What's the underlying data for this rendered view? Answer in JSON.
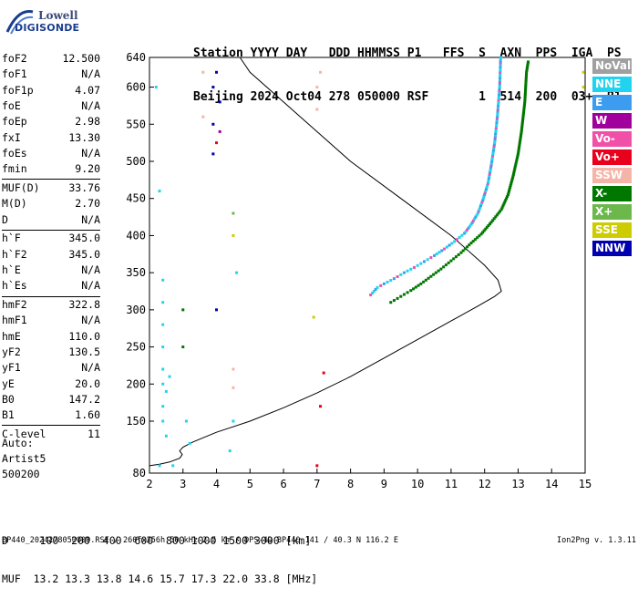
{
  "logo": {
    "line1": "Lowell",
    "line2": "DIGISONDE"
  },
  "header": {
    "line1": "Station YYYY DAY   DDD HHMMSS P1   FFS  S  AXN  PPS  IGA  PS",
    "line2": "Beijing 2024 Oct04 278 050000 RSF       1  514  200  03+  B1"
  },
  "params_group1": [
    {
      "name": "foF2",
      "value": "12.500"
    },
    {
      "name": "foF1",
      "value": "N/A"
    },
    {
      "name": "foF1p",
      "value": "4.07"
    },
    {
      "name": "foE",
      "value": "N/A"
    },
    {
      "name": "foEp",
      "value": "2.98"
    },
    {
      "name": "fxI",
      "value": "13.30"
    },
    {
      "name": "foEs",
      "value": "N/A"
    },
    {
      "name": "fmin",
      "value": "9.20"
    }
  ],
  "params_group2": [
    {
      "name": "MUF(D)",
      "value": "33.76"
    },
    {
      "name": "M(D)",
      "value": "2.70"
    },
    {
      "name": "D",
      "value": "N/A"
    }
  ],
  "params_group3": [
    {
      "name": "h`F",
      "value": "345.0"
    },
    {
      "name": "h`F2",
      "value": "345.0"
    },
    {
      "name": "h`E",
      "value": "N/A"
    },
    {
      "name": "h`Es",
      "value": "N/A"
    }
  ],
  "params_group4": [
    {
      "name": "hmF2",
      "value": "322.8"
    },
    {
      "name": "hmF1",
      "value": "N/A"
    },
    {
      "name": "hmE",
      "value": "110.0"
    },
    {
      "name": "yF2",
      "value": "130.5"
    },
    {
      "name": "yF1",
      "value": "N/A"
    },
    {
      "name": "yE",
      "value": "20.0"
    },
    {
      "name": "B0",
      "value": "147.2"
    },
    {
      "name": "B1",
      "value": "1.60"
    }
  ],
  "params_group5": [
    {
      "name": "C-level",
      "value": "11"
    }
  ],
  "auto": {
    "label": "Auto:",
    "name": "Artist5",
    "code": "500200"
  },
  "muf_table": {
    "line1": "D     100  200  400  600  800 1000 1500 3000 [km]",
    "line2": "MUF  13.2 13.3 13.8 14.6 15.7 17.3 22.0 33.8 [MHz]"
  },
  "footer": "BP440_2024278050000.RSF / 260fx256h 50 kHz 2.5 km / DPS-4D BP440 141 / 40.3 N 116.2 E",
  "version": "Ion2Png v. 1.3.11",
  "legend": [
    {
      "label": "NoVal",
      "color": "#a0a0a0"
    },
    {
      "label": "NNE",
      "color": "#22d3f0"
    },
    {
      "label": "E",
      "color": "#3b9cf0"
    },
    {
      "label": "W",
      "color": "#a2009c"
    },
    {
      "label": "Vo-",
      "color": "#f050a8"
    },
    {
      "label": "Vo+",
      "color": "#e8001c"
    },
    {
      "label": "SSW",
      "color": "#f4b4a8"
    },
    {
      "label": "X-",
      "color": "#007800"
    },
    {
      "label": "X+",
      "color": "#6cb84c"
    },
    {
      "label": "SSE",
      "color": "#cccc00"
    },
    {
      "label": "NNW",
      "color": "#0000b0"
    }
  ],
  "chart_data": {
    "type": "scatter",
    "xlim": [
      2,
      15
    ],
    "ylim": [
      80,
      640
    ],
    "xticks": [
      2,
      3,
      4,
      5,
      6,
      7,
      8,
      9,
      10,
      11,
      12,
      13,
      14,
      15
    ],
    "yticks": [
      80,
      150,
      200,
      250,
      300,
      350,
      400,
      450,
      500,
      550,
      600,
      640
    ],
    "grid": false,
    "ordinary_trace_O": [
      {
        "x": 8.6,
        "y": 320
      },
      {
        "x": 8.7,
        "y": 325
      },
      {
        "x": 8.8,
        "y": 330
      },
      {
        "x": 9.0,
        "y": 335
      },
      {
        "x": 9.3,
        "y": 342
      },
      {
        "x": 9.6,
        "y": 350
      },
      {
        "x": 9.9,
        "y": 357
      },
      {
        "x": 10.2,
        "y": 365
      },
      {
        "x": 10.5,
        "y": 373
      },
      {
        "x": 10.8,
        "y": 382
      },
      {
        "x": 11.1,
        "y": 392
      },
      {
        "x": 11.4,
        "y": 403
      },
      {
        "x": 11.6,
        "y": 415
      },
      {
        "x": 11.8,
        "y": 430
      },
      {
        "x": 11.95,
        "y": 448
      },
      {
        "x": 12.1,
        "y": 470
      },
      {
        "x": 12.2,
        "y": 495
      },
      {
        "x": 12.3,
        "y": 525
      },
      {
        "x": 12.38,
        "y": 560
      },
      {
        "x": 12.45,
        "y": 600
      },
      {
        "x": 12.48,
        "y": 640
      }
    ],
    "extraordinary_trace_X": [
      {
        "x": 9.2,
        "y": 310
      },
      {
        "x": 9.5,
        "y": 318
      },
      {
        "x": 9.8,
        "y": 326
      },
      {
        "x": 10.1,
        "y": 335
      },
      {
        "x": 10.4,
        "y": 345
      },
      {
        "x": 10.7,
        "y": 355
      },
      {
        "x": 11.0,
        "y": 366
      },
      {
        "x": 11.3,
        "y": 377
      },
      {
        "x": 11.6,
        "y": 390
      },
      {
        "x": 11.9,
        "y": 402
      },
      {
        "x": 12.2,
        "y": 418
      },
      {
        "x": 12.5,
        "y": 435
      },
      {
        "x": 12.7,
        "y": 455
      },
      {
        "x": 12.85,
        "y": 480
      },
      {
        "x": 13.0,
        "y": 510
      },
      {
        "x": 13.1,
        "y": 540
      },
      {
        "x": 13.2,
        "y": 580
      },
      {
        "x": 13.25,
        "y": 620
      },
      {
        "x": 13.3,
        "y": 634
      }
    ],
    "profile_curve": [
      {
        "x": 2.0,
        "y": 90
      },
      {
        "x": 2.3,
        "y": 92
      },
      {
        "x": 2.6,
        "y": 95
      },
      {
        "x": 2.9,
        "y": 100
      },
      {
        "x": 2.98,
        "y": 105
      },
      {
        "x": 2.9,
        "y": 110
      },
      {
        "x": 3.0,
        "y": 115
      },
      {
        "x": 3.3,
        "y": 122
      },
      {
        "x": 4.0,
        "y": 135
      },
      {
        "x": 5.0,
        "y": 150
      },
      {
        "x": 6.0,
        "y": 168
      },
      {
        "x": 7.0,
        "y": 188
      },
      {
        "x": 8.0,
        "y": 210
      },
      {
        "x": 9.0,
        "y": 235
      },
      {
        "x": 10.0,
        "y": 260
      },
      {
        "x": 11.0,
        "y": 285
      },
      {
        "x": 11.8,
        "y": 305
      },
      {
        "x": 12.3,
        "y": 318
      },
      {
        "x": 12.5,
        "y": 325
      },
      {
        "x": 12.4,
        "y": 340
      },
      {
        "x": 12.0,
        "y": 360
      },
      {
        "x": 11.0,
        "y": 400
      },
      {
        "x": 9.5,
        "y": 450
      },
      {
        "x": 8.0,
        "y": 500
      },
      {
        "x": 7.0,
        "y": 540
      },
      {
        "x": 6.0,
        "y": 580
      },
      {
        "x": 5.0,
        "y": 620
      },
      {
        "x": 4.7,
        "y": 640
      }
    ],
    "scattered_echoes": [
      {
        "x": 2.4,
        "y": 150,
        "color": "#22d3f0"
      },
      {
        "x": 2.4,
        "y": 170,
        "color": "#22d3f0"
      },
      {
        "x": 2.4,
        "y": 200,
        "color": "#22d3f0"
      },
      {
        "x": 2.4,
        "y": 220,
        "color": "#22d3f0"
      },
      {
        "x": 2.4,
        "y": 250,
        "color": "#22d3f0"
      },
      {
        "x": 2.4,
        "y": 280,
        "color": "#22d3f0"
      },
      {
        "x": 2.4,
        "y": 310,
        "color": "#22d3f0"
      },
      {
        "x": 2.4,
        "y": 340,
        "color": "#22d3f0"
      },
      {
        "x": 2.5,
        "y": 130,
        "color": "#22d3f0"
      },
      {
        "x": 2.5,
        "y": 190,
        "color": "#22d3f0"
      },
      {
        "x": 2.6,
        "y": 210,
        "color": "#22d3f0"
      },
      {
        "x": 2.2,
        "y": 600,
        "color": "#22d3f0"
      },
      {
        "x": 2.3,
        "y": 460,
        "color": "#22d3f0"
      },
      {
        "x": 3.1,
        "y": 150,
        "color": "#22d3f0"
      },
      {
        "x": 3.2,
        "y": 120,
        "color": "#22d3f0"
      },
      {
        "x": 3.0,
        "y": 300,
        "color": "#007800"
      },
      {
        "x": 3.0,
        "y": 250,
        "color": "#007800"
      },
      {
        "x": 2.7,
        "y": 90,
        "color": "#22d3f0"
      },
      {
        "x": 3.9,
        "y": 600,
        "color": "#0000b0"
      },
      {
        "x": 3.9,
        "y": 550,
        "color": "#0000b0"
      },
      {
        "x": 3.9,
        "y": 510,
        "color": "#0000b0"
      },
      {
        "x": 4.0,
        "y": 620,
        "color": "#0000b0"
      },
      {
        "x": 4.1,
        "y": 580,
        "color": "#0000b0"
      },
      {
        "x": 4.1,
        "y": 540,
        "color": "#a2009c"
      },
      {
        "x": 4.0,
        "y": 525,
        "color": "#e8001c"
      },
      {
        "x": 4.0,
        "y": 300,
        "color": "#0000b0"
      },
      {
        "x": 4.5,
        "y": 430,
        "color": "#6cb84c"
      },
      {
        "x": 4.5,
        "y": 400,
        "color": "#cccc00"
      },
      {
        "x": 4.6,
        "y": 350,
        "color": "#22d3f0"
      },
      {
        "x": 4.5,
        "y": 220,
        "color": "#f4b4a8"
      },
      {
        "x": 4.5,
        "y": 195,
        "color": "#f4b4a8"
      },
      {
        "x": 3.6,
        "y": 560,
        "color": "#f4b4a8"
      },
      {
        "x": 3.6,
        "y": 620,
        "color": "#f4b4a8"
      },
      {
        "x": 7.0,
        "y": 600,
        "color": "#f4b4a8"
      },
      {
        "x": 7.0,
        "y": 570,
        "color": "#f4b4a8"
      },
      {
        "x": 7.1,
        "y": 620,
        "color": "#f4b4a8"
      },
      {
        "x": 7.0,
        "y": 90,
        "color": "#e8001c"
      },
      {
        "x": 7.1,
        "y": 170,
        "color": "#e8001c"
      },
      {
        "x": 7.2,
        "y": 215,
        "color": "#e8001c"
      },
      {
        "x": 6.9,
        "y": 290,
        "color": "#cccc00"
      },
      {
        "x": 4.5,
        "y": 150,
        "color": "#22d3f0"
      },
      {
        "x": 4.4,
        "y": 110,
        "color": "#22d3f0"
      },
      {
        "x": 2.3,
        "y": 90,
        "color": "#22d3f0"
      },
      {
        "x": 14.95,
        "y": 600,
        "color": "#cccc00"
      },
      {
        "x": 14.95,
        "y": 620,
        "color": "#cccc00"
      }
    ]
  }
}
